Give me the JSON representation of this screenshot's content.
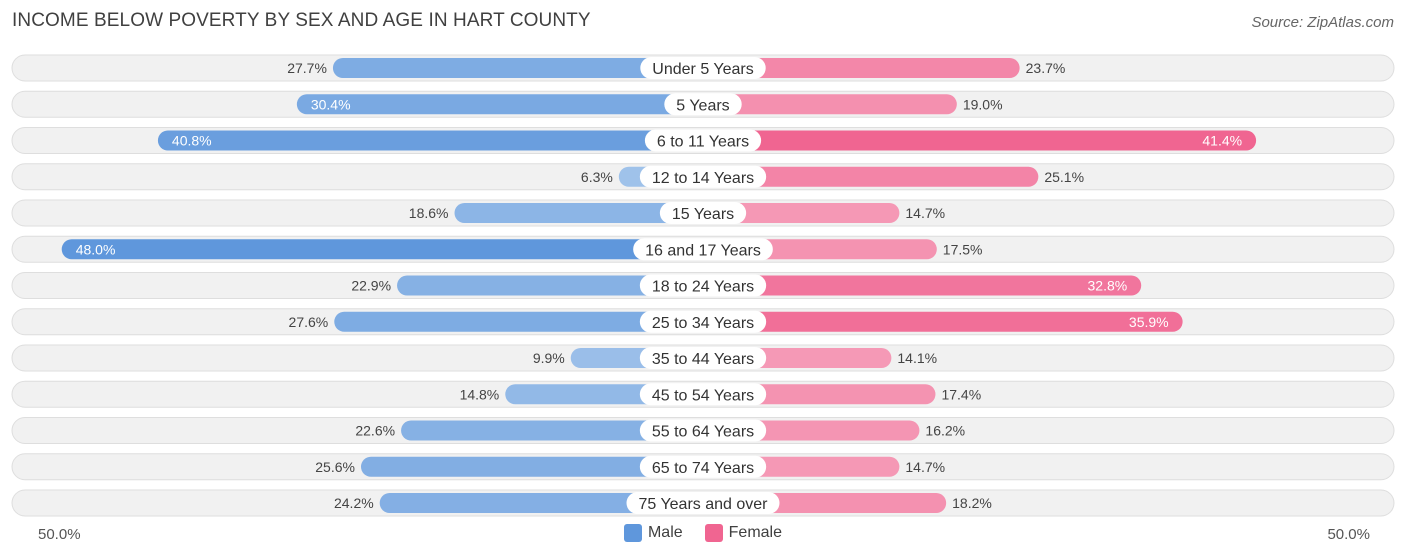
{
  "header": {
    "title": "INCOME BELOW POVERTY BY SEX AND AGE IN HART COUNTY",
    "source": "Source: ZipAtlas.com"
  },
  "axis": {
    "left_label": "50.0%",
    "right_label": "50.0%"
  },
  "colors": {
    "male_light": "#a9c8ec",
    "male_dark": "#5f97dc",
    "female_light": "#f7b4c9",
    "female_dark": "#f06591",
    "track": "#f1f1f1",
    "track_border": "#dedede"
  },
  "chart_data": {
    "type": "bar",
    "orientation": "horizontal-diverging",
    "title": "INCOME BELOW POVERTY BY SEX AND AGE IN HART COUNTY",
    "xlim": [
      -50,
      50
    ],
    "categories": [
      "Under 5 Years",
      "5 Years",
      "6 to 11 Years",
      "12 to 14 Years",
      "15 Years",
      "16 and 17 Years",
      "18 to 24 Years",
      "25 to 34 Years",
      "35 to 44 Years",
      "45 to 54 Years",
      "55 to 64 Years",
      "65 to 74 Years",
      "75 Years and over"
    ],
    "series": [
      {
        "name": "Male",
        "values": [
          27.7,
          30.4,
          40.8,
          6.3,
          18.6,
          48.0,
          22.9,
          27.6,
          9.9,
          14.8,
          22.6,
          25.6,
          24.2
        ],
        "labels": [
          "27.7%",
          "30.4%",
          "40.8%",
          "6.3%",
          "18.6%",
          "48.0%",
          "22.9%",
          "27.6%",
          "9.9%",
          "14.8%",
          "22.6%",
          "25.6%",
          "24.2%"
        ]
      },
      {
        "name": "Female",
        "values": [
          23.7,
          19.0,
          41.4,
          25.1,
          14.7,
          17.5,
          32.8,
          35.9,
          14.1,
          17.4,
          16.2,
          14.7,
          18.2
        ],
        "labels": [
          "23.7%",
          "19.0%",
          "41.4%",
          "25.1%",
          "14.7%",
          "17.5%",
          "32.8%",
          "35.9%",
          "14.1%",
          "17.4%",
          "16.2%",
          "14.7%",
          "18.2%"
        ]
      }
    ],
    "legend": {
      "position": "bottom-center",
      "items": [
        "Male",
        "Female"
      ]
    }
  }
}
